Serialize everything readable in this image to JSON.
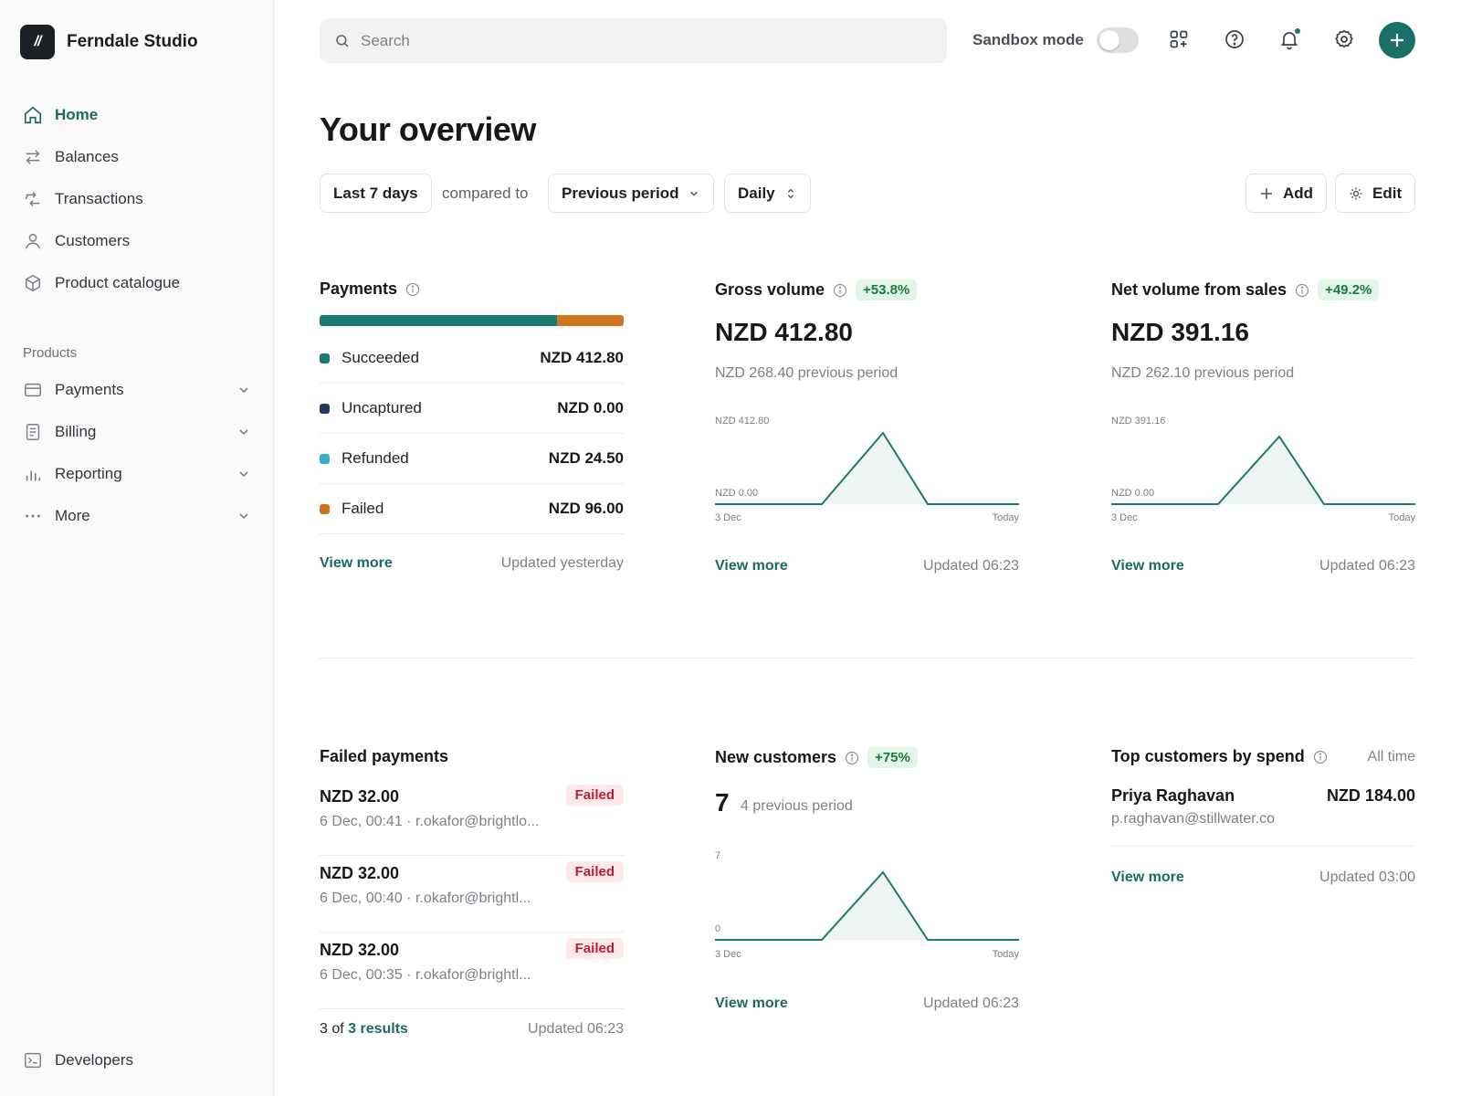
{
  "brand": {
    "logo_text": "//",
    "name": "Ferndale Studio"
  },
  "sidebar": {
    "items": [
      {
        "label": "Home",
        "icon": "home-icon"
      },
      {
        "label": "Balances",
        "icon": "arrows-icon"
      },
      {
        "label": "Transactions",
        "icon": "transactions-icon"
      },
      {
        "label": "Customers",
        "icon": "person-icon"
      },
      {
        "label": "Product catalogue",
        "icon": "box-icon"
      }
    ],
    "section_label": "Products",
    "products": [
      {
        "label": "Payments",
        "icon": "card-icon"
      },
      {
        "label": "Billing",
        "icon": "document-icon"
      },
      {
        "label": "Reporting",
        "icon": "bar-chart-icon"
      },
      {
        "label": "More",
        "icon": "more-dots-icon"
      }
    ],
    "developers": {
      "label": "Developers",
      "icon": "terminal-icon"
    }
  },
  "topbar": {
    "search_placeholder": "Search",
    "sandbox_label": "Sandbox mode",
    "sandbox_on": false,
    "icons": [
      "apps-icon",
      "help-icon",
      "bell-icon",
      "settings-icon",
      "plus-icon"
    ]
  },
  "header": {
    "title": "Your overview",
    "range": "Last 7 days",
    "compared_to": "compared to",
    "comparison": "Previous period",
    "interval": "Daily",
    "add_label": "Add",
    "edit_label": "Edit"
  },
  "payments": {
    "title": "Payments",
    "bar": {
      "succeeded_fraction": 0.78,
      "failed_fraction": 0.22
    },
    "rows": [
      {
        "label": "Succeeded",
        "amount": "NZD 412.80",
        "color": "#1a7a6e"
      },
      {
        "label": "Uncaptured",
        "amount": "NZD 0.00",
        "color": "#1f3a5c"
      },
      {
        "label": "Refunded",
        "amount": "NZD 24.50",
        "color": "#3aaed0"
      },
      {
        "label": "Failed",
        "amount": "NZD 96.00",
        "color": "#d0741f"
      }
    ],
    "view_more": "View more",
    "updated": "Updated yesterday"
  },
  "gross_volume": {
    "title": "Gross volume",
    "badge": "+53.8%",
    "value": "NZD 412.80",
    "previous": "NZD 268.40 previous period",
    "axis_top": "NZD 412.80",
    "axis_bottom": "NZD 0.00",
    "x_start": "3 Dec",
    "x_end": "Today",
    "view_more": "View more",
    "updated": "Updated 06:23"
  },
  "net_volume": {
    "title": "Net volume from sales",
    "badge": "+49.2%",
    "value": "NZD 391.16",
    "previous": "NZD 262.10 previous period",
    "axis_top": "NZD 391.16",
    "axis_bottom": "NZD 0.00",
    "x_start": "3 Dec",
    "x_end": "Today",
    "view_more": "View more",
    "updated": "Updated 06:23"
  },
  "failed_payments": {
    "title": "Failed payments",
    "items": [
      {
        "amount": "NZD 32.00",
        "meta": "6 Dec, 00:41 · r.okafor@brightlo...",
        "status": "Failed"
      },
      {
        "amount": "NZD 32.00",
        "meta": "6 Dec, 00:40 · r.okafor@brightl...",
        "status": "Failed"
      },
      {
        "amount": "NZD 32.00",
        "meta": "6 Dec, 00:35 · r.okafor@brightl...",
        "status": "Failed"
      }
    ],
    "results_prefix": "3 of",
    "results_link": "3 results",
    "updated": "Updated 06:23"
  },
  "new_customers": {
    "title": "New customers",
    "badge": "+75%",
    "value": "7",
    "previous": "4 previous period",
    "axis_top": "7",
    "axis_bottom": "0",
    "x_start": "3 Dec",
    "x_end": "Today",
    "view_more": "View more",
    "updated": "Updated 06:23"
  },
  "top_customers": {
    "title": "Top customers by spend",
    "scope": "All time",
    "customer": {
      "name": "Priya Raghavan",
      "email": "p.raghavan@stillwater.co",
      "amount": "NZD 184.00"
    },
    "view_more": "View more",
    "updated": "Updated 03:00"
  },
  "colors": {
    "accent": "#1a6b63",
    "succeeded": "#1a7a6e",
    "failed": "#d0741f",
    "chart_line": "#1a7a6e",
    "chart_fill": "#eef5f3"
  }
}
